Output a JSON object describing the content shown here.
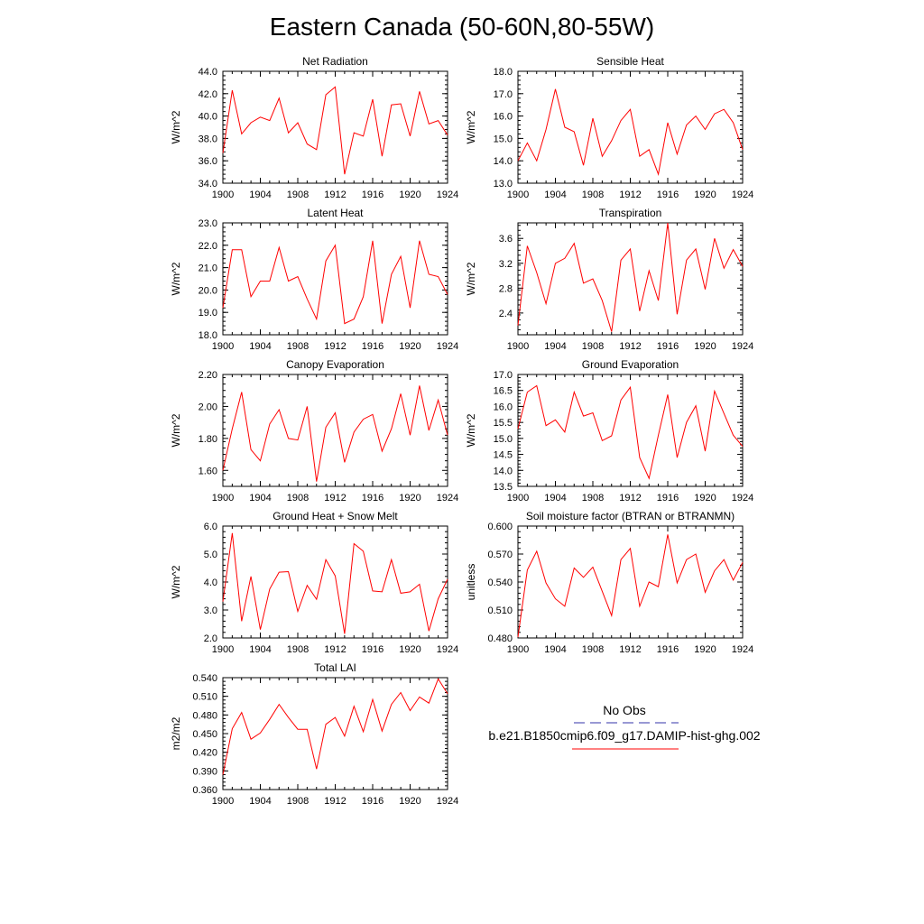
{
  "figure": {
    "title": "Eastern Canada (50-60N,80-55W)"
  },
  "legend": {
    "obs_label": "No Obs",
    "obs_color": "#3333aa",
    "model_label": "b.e21.B1850cmip6.f09_g17.DAMIP-hist-ghg.002",
    "model_color": "#ff0000"
  },
  "chart_data": [
    {
      "type": "line",
      "title": "Net Radiation",
      "ylabel": "W/m^2",
      "xlim": [
        1900,
        1924
      ],
      "ylim": [
        34.0,
        44.0
      ],
      "xticks": [
        "1900",
        "1904",
        "1908",
        "1912",
        "1916",
        "1920",
        "1924"
      ],
      "yticks": [
        "34.0",
        "36.0",
        "38.0",
        "40.0",
        "42.0",
        "44.0"
      ],
      "x": [
        1900,
        1901,
        1902,
        1903,
        1904,
        1905,
        1906,
        1907,
        1908,
        1909,
        1910,
        1911,
        1912,
        1913,
        1914,
        1915,
        1916,
        1917,
        1918,
        1919,
        1920,
        1921,
        1922,
        1923,
        1924
      ],
      "series": [
        {
          "values": [
            36.7,
            42.3,
            38.4,
            39.4,
            39.9,
            39.6,
            41.6,
            38.5,
            39.4,
            37.5,
            37.0,
            41.9,
            42.6,
            34.8,
            38.5,
            38.2,
            41.5,
            36.4,
            41.0,
            41.1,
            38.2,
            42.2,
            39.3,
            39.6,
            38.3
          ],
          "color": "#ff0000"
        }
      ]
    },
    {
      "type": "line",
      "title": "Sensible Heat",
      "ylabel": "W/m^2",
      "xlim": [
        1900,
        1924
      ],
      "ylim": [
        13.0,
        18.0
      ],
      "xticks": [
        "1900",
        "1904",
        "1908",
        "1912",
        "1916",
        "1920",
        "1924"
      ],
      "yticks": [
        "13.0",
        "14.0",
        "15.0",
        "16.0",
        "17.0",
        "18.0"
      ],
      "x": [
        1900,
        1901,
        1902,
        1903,
        1904,
        1905,
        1906,
        1907,
        1908,
        1909,
        1910,
        1911,
        1912,
        1913,
        1914,
        1915,
        1916,
        1917,
        1918,
        1919,
        1920,
        1921,
        1922,
        1923,
        1924
      ],
      "series": [
        {
          "values": [
            14.0,
            14.8,
            14.0,
            15.4,
            17.2,
            15.5,
            15.3,
            13.8,
            15.9,
            14.2,
            14.9,
            15.8,
            16.3,
            14.2,
            14.5,
            13.4,
            15.7,
            14.3,
            15.6,
            16.0,
            15.4,
            16.1,
            16.3,
            15.7,
            14.5
          ],
          "color": "#ff0000"
        }
      ]
    },
    {
      "type": "line",
      "title": "Latent Heat",
      "ylabel": "W/m^2",
      "xlim": [
        1900,
        1924
      ],
      "ylim": [
        18.0,
        23.0
      ],
      "xticks": [
        "1900",
        "1904",
        "1908",
        "1912",
        "1916",
        "1920",
        "1924"
      ],
      "yticks": [
        "18.0",
        "19.0",
        "20.0",
        "21.0",
        "22.0",
        "23.0"
      ],
      "x": [
        1900,
        1901,
        1902,
        1903,
        1904,
        1905,
        1906,
        1907,
        1908,
        1909,
        1910,
        1911,
        1912,
        1913,
        1914,
        1915,
        1916,
        1917,
        1918,
        1919,
        1920,
        1921,
        1922,
        1923,
        1924
      ],
      "series": [
        {
          "values": [
            19.2,
            21.8,
            21.8,
            19.7,
            20.4,
            20.4,
            21.9,
            20.4,
            20.6,
            19.6,
            18.7,
            21.3,
            22.0,
            18.5,
            18.7,
            19.7,
            22.2,
            18.5,
            20.7,
            21.5,
            19.2,
            22.2,
            20.7,
            20.6,
            19.8
          ],
          "color": "#ff0000"
        }
      ]
    },
    {
      "type": "line",
      "title": "Transpiration",
      "ylabel": "W/m^2",
      "xlim": [
        1900,
        1924
      ],
      "ylim": [
        2.05,
        3.85
      ],
      "xticks": [
        "1900",
        "1904",
        "1908",
        "1912",
        "1916",
        "1920",
        "1924"
      ],
      "yticks": [
        "2.4",
        "2.8",
        "3.2",
        "3.6"
      ],
      "ytick_values": [
        2.4,
        2.8,
        3.2,
        3.6
      ],
      "x": [
        1900,
        1901,
        1902,
        1903,
        1904,
        1905,
        1906,
        1907,
        1908,
        1909,
        1910,
        1911,
        1912,
        1913,
        1914,
        1915,
        1916,
        1917,
        1918,
        1919,
        1920,
        1921,
        1922,
        1923,
        1924
      ],
      "series": [
        {
          "values": [
            2.2,
            3.48,
            3.05,
            2.55,
            3.2,
            3.28,
            3.52,
            2.88,
            2.95,
            2.6,
            2.1,
            3.25,
            3.43,
            2.43,
            3.08,
            2.6,
            3.85,
            2.38,
            3.25,
            3.43,
            2.78,
            3.6,
            3.12,
            3.42,
            3.15
          ],
          "color": "#ff0000"
        }
      ]
    },
    {
      "type": "line",
      "title": "Canopy Evaporation",
      "ylabel": "W/m^2",
      "xlim": [
        1900,
        1924
      ],
      "ylim": [
        1.5,
        2.2
      ],
      "xticks": [
        "1900",
        "1904",
        "1908",
        "1912",
        "1916",
        "1920",
        "1924"
      ],
      "yticks": [
        "1.60",
        "1.80",
        "2.00",
        "2.20"
      ],
      "ytick_values": [
        1.6,
        1.8,
        2.0,
        2.2
      ],
      "x": [
        1900,
        1901,
        1902,
        1903,
        1904,
        1905,
        1906,
        1907,
        1908,
        1909,
        1910,
        1911,
        1912,
        1913,
        1914,
        1915,
        1916,
        1917,
        1918,
        1919,
        1920,
        1921,
        1922,
        1923,
        1924
      ],
      "series": [
        {
          "values": [
            1.6,
            1.86,
            2.09,
            1.73,
            1.66,
            1.89,
            1.98,
            1.8,
            1.79,
            2.0,
            1.53,
            1.87,
            1.96,
            1.65,
            1.84,
            1.92,
            1.95,
            1.72,
            1.86,
            2.08,
            1.82,
            2.13,
            1.85,
            2.04,
            1.82
          ],
          "color": "#ff0000"
        }
      ]
    },
    {
      "type": "line",
      "title": "Ground Evaporation",
      "ylabel": "W/m^2",
      "xlim": [
        1900,
        1924
      ],
      "ylim": [
        13.5,
        17.0
      ],
      "xticks": [
        "1900",
        "1904",
        "1908",
        "1912",
        "1916",
        "1920",
        "1924"
      ],
      "yticks": [
        "13.5",
        "14.0",
        "14.5",
        "15.0",
        "15.5",
        "16.0",
        "16.5",
        "17.0"
      ],
      "x": [
        1900,
        1901,
        1902,
        1903,
        1904,
        1905,
        1906,
        1907,
        1908,
        1909,
        1910,
        1911,
        1912,
        1913,
        1914,
        1915,
        1916,
        1917,
        1918,
        1919,
        1920,
        1921,
        1922,
        1923,
        1924
      ],
      "series": [
        {
          "values": [
            15.3,
            16.45,
            16.65,
            15.4,
            15.58,
            15.2,
            16.45,
            15.7,
            15.8,
            14.93,
            15.08,
            16.2,
            16.6,
            14.4,
            13.75,
            15.1,
            16.37,
            14.4,
            15.5,
            16.02,
            14.6,
            16.48,
            15.78,
            15.1,
            14.75
          ],
          "color": "#ff0000"
        }
      ]
    },
    {
      "type": "line",
      "title": "Ground Heat + Snow Melt",
      "ylabel": "W/m^2",
      "xlim": [
        1900,
        1924
      ],
      "ylim": [
        2.0,
        6.0
      ],
      "xticks": [
        "1900",
        "1904",
        "1908",
        "1912",
        "1916",
        "1920",
        "1924"
      ],
      "yticks": [
        "2.0",
        "3.0",
        "4.0",
        "5.0",
        "6.0"
      ],
      "x": [
        1900,
        1901,
        1902,
        1903,
        1904,
        1905,
        1906,
        1907,
        1908,
        1909,
        1910,
        1911,
        1912,
        1913,
        1914,
        1915,
        1916,
        1917,
        1918,
        1919,
        1920,
        1921,
        1922,
        1923,
        1924
      ],
      "series": [
        {
          "values": [
            3.3,
            5.75,
            2.6,
            4.2,
            2.3,
            3.75,
            4.35,
            4.37,
            2.95,
            3.88,
            3.38,
            4.8,
            4.22,
            2.15,
            5.37,
            5.1,
            3.68,
            3.65,
            4.8,
            3.6,
            3.65,
            3.92,
            2.25,
            3.4,
            4.1
          ],
          "color": "#ff0000"
        }
      ]
    },
    {
      "type": "line",
      "title": "Soil moisture factor (BTRAN or BTRANMN)",
      "ylabel": "unitless",
      "xlim": [
        1900,
        1924
      ],
      "ylim": [
        0.48,
        0.6
      ],
      "xticks": [
        "1900",
        "1904",
        "1908",
        "1912",
        "1916",
        "1920",
        "1924"
      ],
      "yticks": [
        "0.480",
        "0.510",
        "0.540",
        "0.570",
        "0.600"
      ],
      "x": [
        1900,
        1901,
        1902,
        1903,
        1904,
        1905,
        1906,
        1907,
        1908,
        1909,
        1910,
        1911,
        1912,
        1913,
        1914,
        1915,
        1916,
        1917,
        1918,
        1919,
        1920,
        1921,
        1922,
        1923,
        1924
      ],
      "series": [
        {
          "values": [
            0.481,
            0.553,
            0.573,
            0.539,
            0.522,
            0.514,
            0.555,
            0.545,
            0.556,
            0.53,
            0.504,
            0.564,
            0.576,
            0.514,
            0.54,
            0.535,
            0.591,
            0.539,
            0.564,
            0.57,
            0.529,
            0.552,
            0.564,
            0.542,
            0.561
          ],
          "color": "#ff0000"
        }
      ]
    },
    {
      "type": "line",
      "title": "Total LAI",
      "ylabel": "m2/m2",
      "xlim": [
        1900,
        1924
      ],
      "ylim": [
        0.36,
        0.54
      ],
      "xticks": [
        "1900",
        "1904",
        "1908",
        "1912",
        "1916",
        "1920",
        "1924"
      ],
      "yticks": [
        "0.360",
        "0.390",
        "0.420",
        "0.450",
        "0.480",
        "0.510",
        "0.540"
      ],
      "x": [
        1900,
        1901,
        1902,
        1903,
        1904,
        1905,
        1906,
        1907,
        1908,
        1909,
        1910,
        1911,
        1912,
        1913,
        1914,
        1915,
        1916,
        1917,
        1918,
        1919,
        1920,
        1921,
        1922,
        1923,
        1924
      ],
      "series": [
        {
          "values": [
            0.384,
            0.458,
            0.484,
            0.441,
            0.451,
            0.473,
            0.497,
            0.476,
            0.457,
            0.457,
            0.393,
            0.465,
            0.476,
            0.446,
            0.494,
            0.453,
            0.505,
            0.454,
            0.497,
            0.516,
            0.487,
            0.509,
            0.499,
            0.538,
            0.514
          ],
          "color": "#ff0000"
        }
      ]
    }
  ]
}
